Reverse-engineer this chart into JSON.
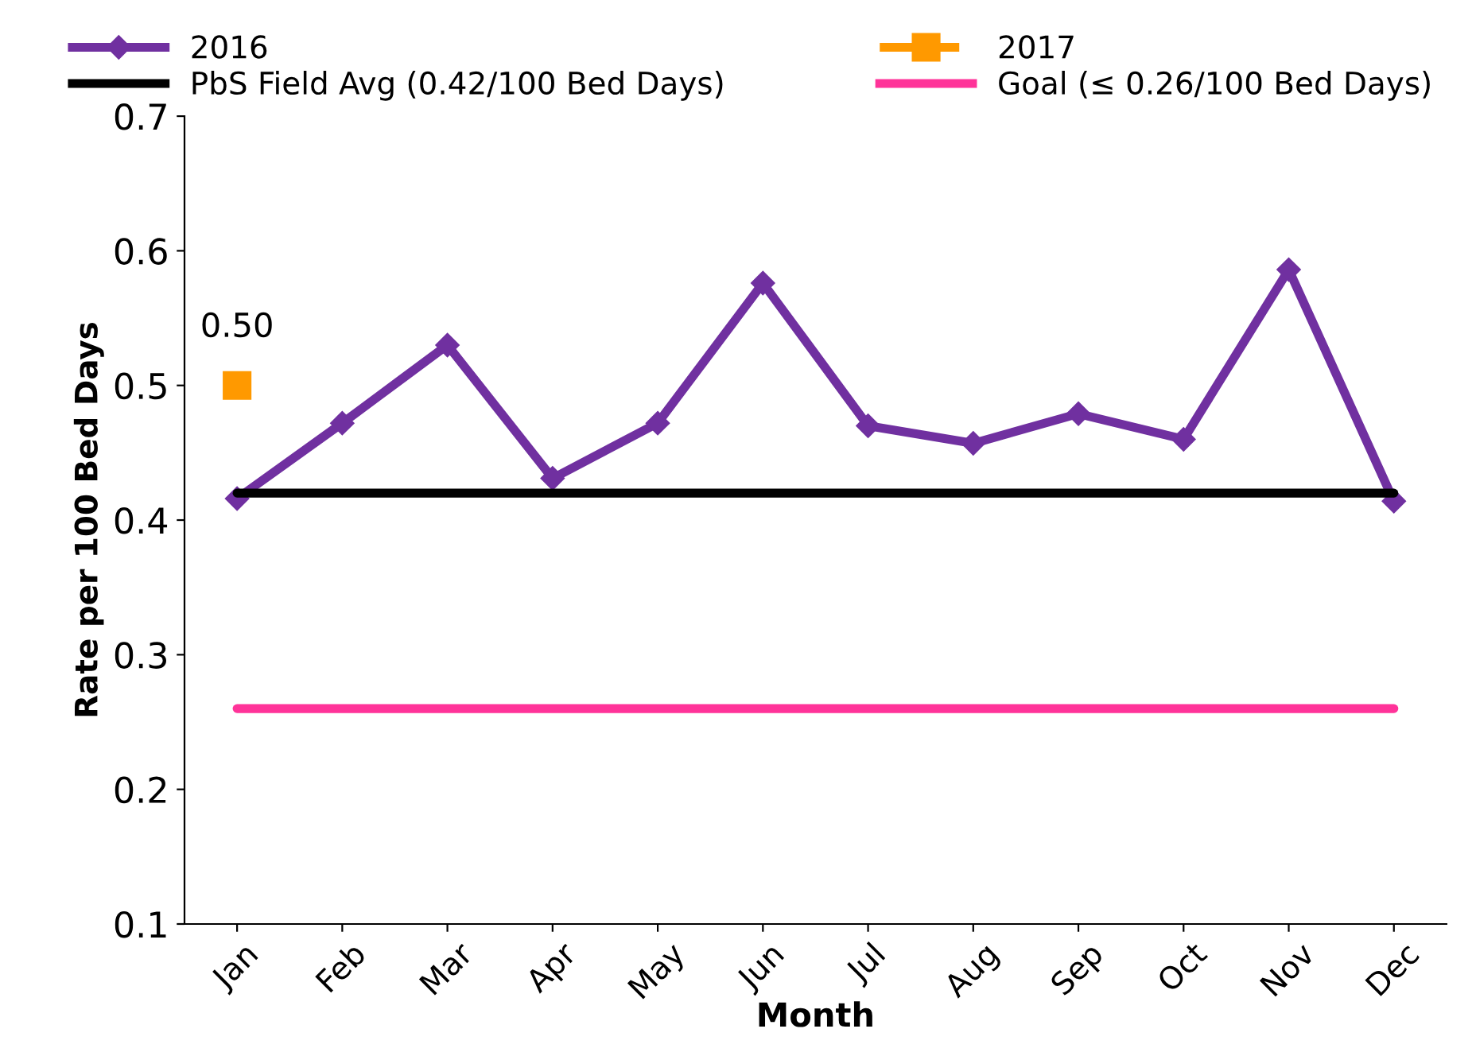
{
  "chart_data": {
    "type": "line",
    "xlabel": "Month",
    "ylabel": "Rate per 100 Bed Days",
    "categories": [
      "Jan",
      "Feb",
      "Mar",
      "Apr",
      "May",
      "Jun",
      "Jul",
      "Aug",
      "Sep",
      "Oct",
      "Nov",
      "Dec"
    ],
    "series": [
      {
        "name": "2016",
        "color": "#7030a0",
        "marker": "diamond",
        "line_style": "solid",
        "values": [
          0.416,
          0.472,
          0.53,
          0.431,
          0.472,
          0.576,
          0.47,
          0.457,
          0.479,
          0.46,
          0.586,
          0.414
        ]
      },
      {
        "name": "2017",
        "color": "#ff9900",
        "marker": "square",
        "line_style": "dashed",
        "values": [
          0.5,
          null,
          null,
          null,
          null,
          null,
          null,
          null,
          null,
          null,
          null,
          null
        ],
        "value_labels": [
          "0.50",
          null,
          null,
          null,
          null,
          null,
          null,
          null,
          null,
          null,
          null,
          null
        ]
      },
      {
        "name": "PbS Field Avg (0.42/100 Bed Days)",
        "color": "#000000",
        "marker": "none",
        "line_style": "solid",
        "values": [
          0.42,
          0.42,
          0.42,
          0.42,
          0.42,
          0.42,
          0.42,
          0.42,
          0.42,
          0.42,
          0.42,
          0.42
        ]
      },
      {
        "name": "Goal (≤ 0.26/100 Bed Days)",
        "color": "#ff3399",
        "marker": "none",
        "line_style": "solid",
        "values": [
          0.26,
          0.26,
          0.26,
          0.26,
          0.26,
          0.26,
          0.26,
          0.26,
          0.26,
          0.26,
          0.26,
          0.26
        ]
      }
    ],
    "ylim": [
      0.1,
      0.7
    ],
    "yticks": [
      0.1,
      0.2,
      0.3,
      0.4,
      0.5,
      0.6,
      0.7
    ],
    "grid": false,
    "legend": "top"
  }
}
